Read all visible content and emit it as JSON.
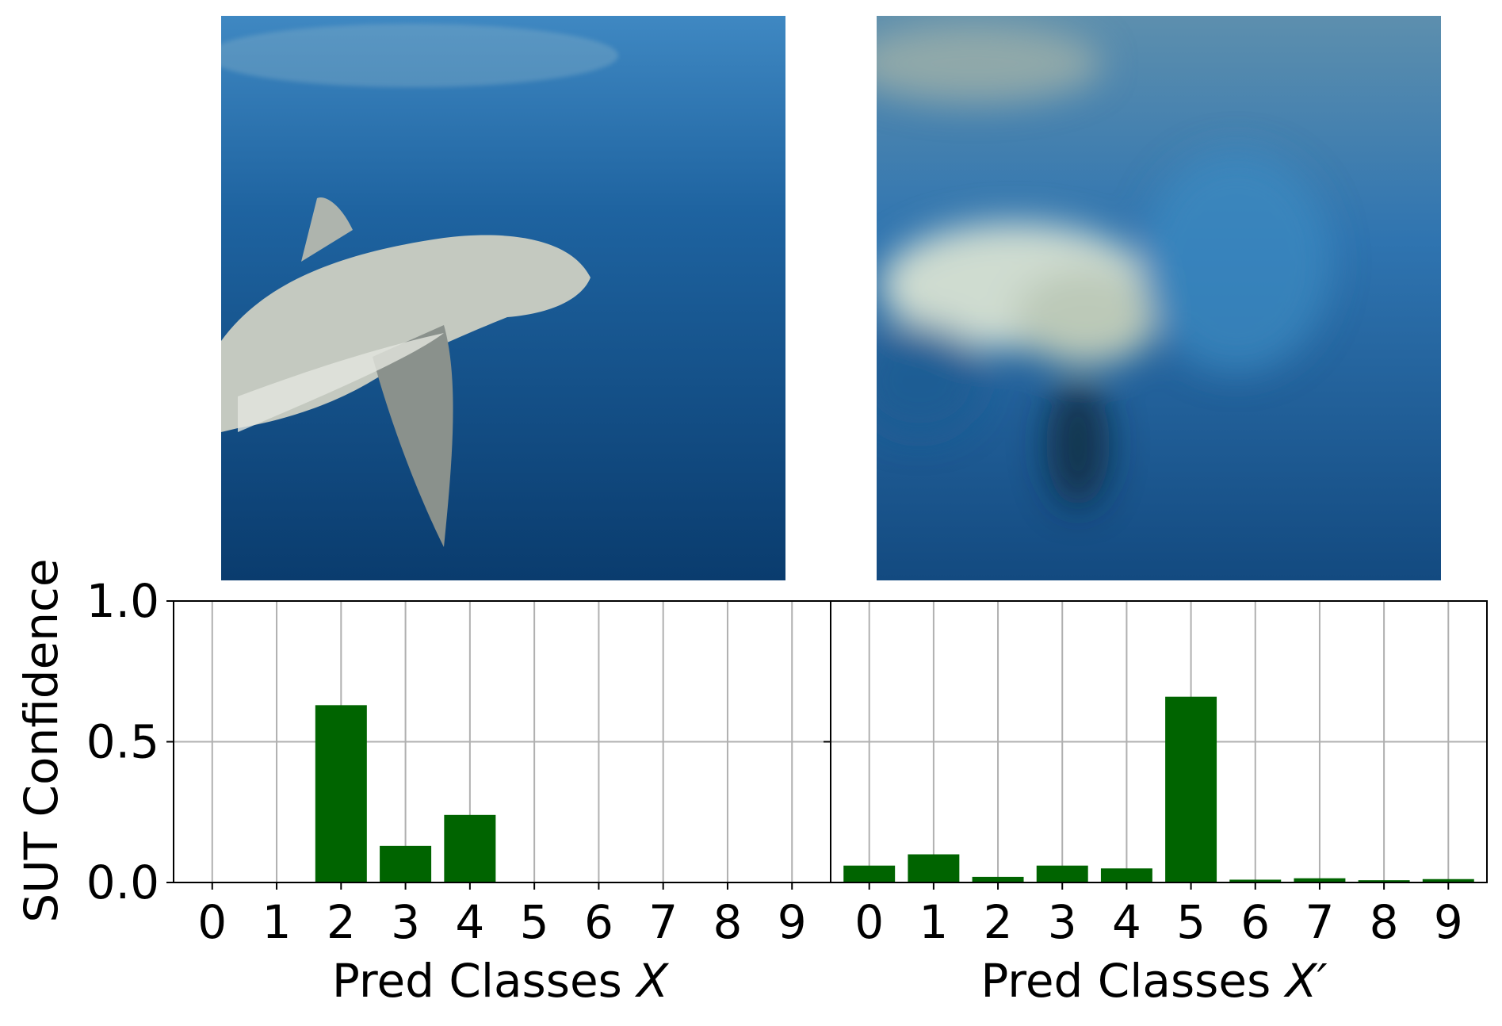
{
  "colors": {
    "bar": "#006400",
    "grid": "#b0b0b0",
    "axes": "#000000",
    "water_light": "#2e78b6",
    "water_dark": "#0b3f73",
    "shark": "#c9ccc2"
  },
  "images": {
    "original": {
      "icon": "shark-photo"
    },
    "perturbed": {
      "icon": "blurred-shark-photo"
    }
  },
  "chart_data": [
    {
      "type": "bar",
      "categories": [
        "0",
        "1",
        "2",
        "3",
        "4",
        "5",
        "6",
        "7",
        "8",
        "9"
      ],
      "values": [
        0.0,
        0.0,
        0.63,
        0.13,
        0.24,
        0.0,
        0.0,
        0.0,
        0.0,
        0.0
      ],
      "ylim": [
        0,
        1.0
      ],
      "yticks": [
        "0.0",
        "0.5",
        "1.0"
      ],
      "xlabel_text": "Pred Classes ",
      "xlabel_var": "X",
      "ylabel": "SUT Confidence",
      "grid": true
    },
    {
      "type": "bar",
      "categories": [
        "0",
        "1",
        "2",
        "3",
        "4",
        "5",
        "6",
        "7",
        "8",
        "9"
      ],
      "values": [
        0.06,
        0.1,
        0.02,
        0.06,
        0.05,
        0.66,
        0.01,
        0.015,
        0.008,
        0.012
      ],
      "ylim": [
        0,
        1.0
      ],
      "xlabel_text": "Pred Classes ",
      "xlabel_var": "X′",
      "grid": true
    }
  ]
}
